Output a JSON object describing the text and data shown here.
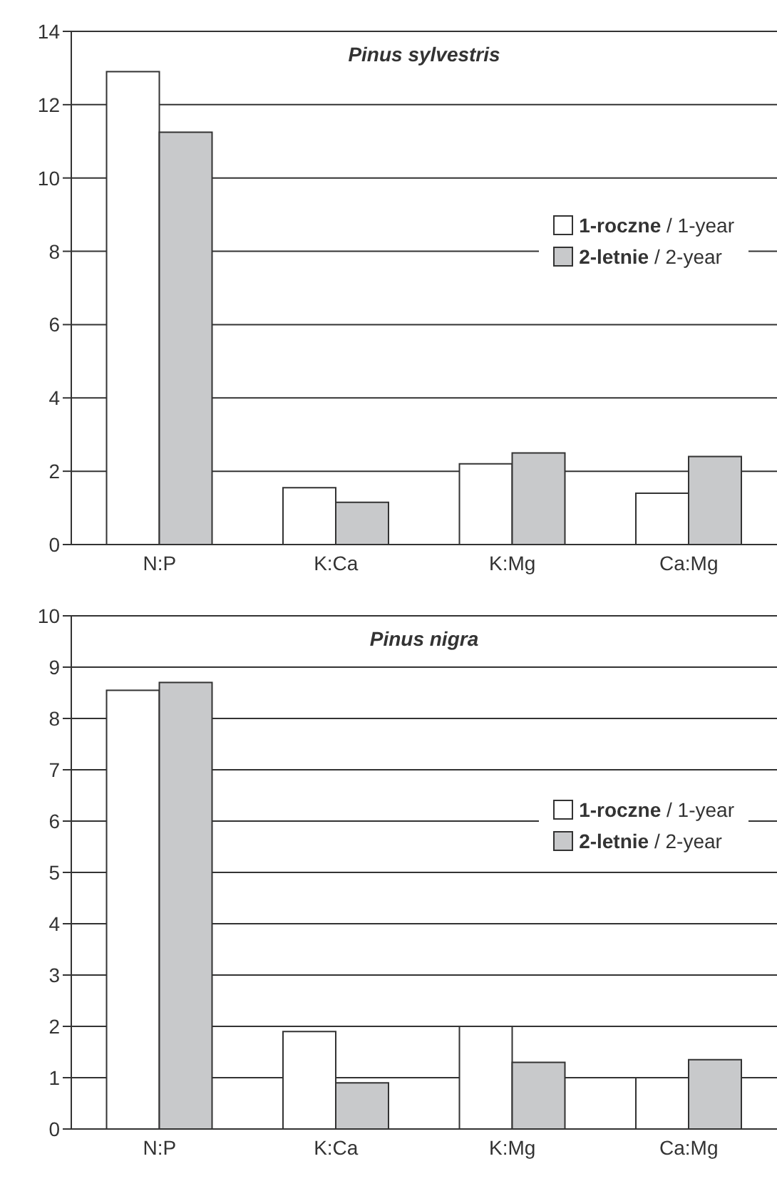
{
  "chart_data": [
    {
      "type": "bar",
      "title": "Pinus sylvestris",
      "categories": [
        "N:P",
        "K:Ca",
        "K:Mg",
        "Ca:Mg"
      ],
      "series": [
        {
          "name": "1-roczne / 1-year",
          "color": "#ffffff",
          "values": [
            12.9,
            1.55,
            2.2,
            1.4
          ]
        },
        {
          "name": "2-letnie / 2-year",
          "color": "#c8c9cb",
          "values": [
            11.25,
            1.15,
            2.5,
            2.4
          ]
        }
      ],
      "ylim": [
        0,
        14
      ],
      "yticks": [
        0,
        2,
        4,
        6,
        8,
        10,
        12,
        14
      ],
      "grid": "y",
      "legend": "right"
    },
    {
      "type": "bar",
      "title": "Pinus nigra",
      "categories": [
        "N:P",
        "K:Ca",
        "K:Mg",
        "Ca:Mg"
      ],
      "series": [
        {
          "name": "1-roczne / 1-year",
          "color": "#ffffff",
          "values": [
            8.55,
            1.9,
            2.0,
            1.0
          ]
        },
        {
          "name": "2-letnie / 2-year",
          "color": "#c8c9cb",
          "values": [
            8.7,
            0.9,
            1.3,
            1.35
          ]
        }
      ],
      "ylim": [
        0,
        10
      ],
      "yticks": [
        0,
        1,
        2,
        3,
        4,
        5,
        6,
        7,
        8,
        9,
        10
      ],
      "grid": "y",
      "legend": "right"
    }
  ]
}
